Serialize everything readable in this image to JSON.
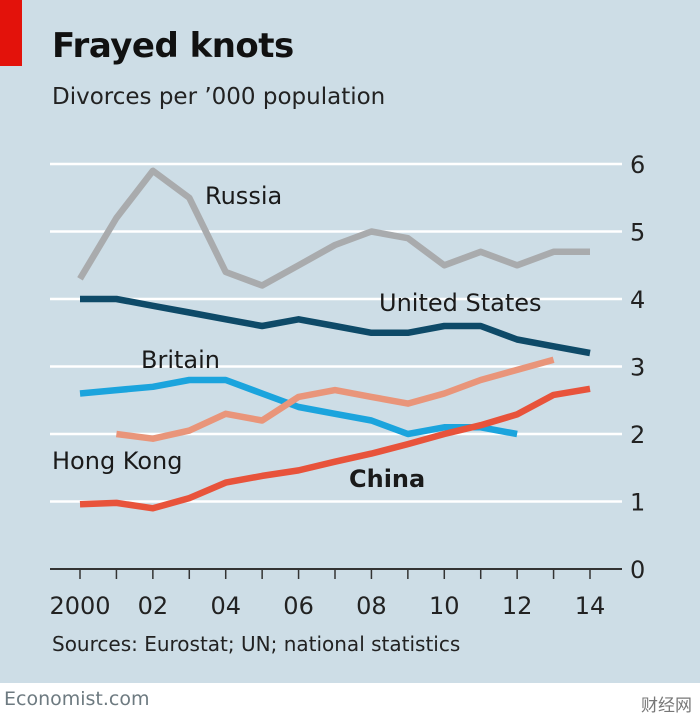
{
  "header": {
    "title": "Frayed knots",
    "subtitle": "Divorces per ’000 population"
  },
  "sources": "Sources: Eurostat; UN; national statistics",
  "footer": {
    "brand": "Economist.com",
    "watermark": "财经网"
  },
  "chart_data": {
    "type": "line",
    "title": "Frayed knots",
    "subtitle": "Divorces per ’000 population",
    "ylabel": "Divorces per ’000 population",
    "xlabel": "",
    "xlim": [
      2000,
      2014
    ],
    "ylim": [
      0,
      6
    ],
    "x_ticks": [
      2000,
      2002,
      2004,
      2006,
      2008,
      2010,
      2012,
      2014
    ],
    "x_tick_labels": [
      "2000",
      "02",
      "04",
      "06",
      "08",
      "10",
      "12",
      "14"
    ],
    "y_ticks": [
      0,
      1,
      2,
      3,
      4,
      5,
      6
    ],
    "y_tick_labels": [
      "0",
      "1",
      "2",
      "3",
      "4",
      "5",
      "6"
    ],
    "grid": true,
    "legend": "direct labels",
    "series": [
      {
        "name": "Russia",
        "label": "Russia",
        "color": "#a9abad",
        "bold": false,
        "x": [
          2000,
          2001,
          2002,
          2003,
          2004,
          2005,
          2006,
          2007,
          2008,
          2009,
          2010,
          2011,
          2012,
          2013,
          2014
        ],
        "values": [
          4.3,
          5.2,
          5.9,
          5.5,
          4.4,
          4.2,
          4.5,
          4.8,
          5.0,
          4.9,
          4.5,
          4.7,
          4.5,
          4.7,
          4.7
        ]
      },
      {
        "name": "United States",
        "label": "United States",
        "color": "#0e4a68",
        "bold": false,
        "x": [
          2000,
          2001,
          2002,
          2003,
          2004,
          2005,
          2006,
          2007,
          2008,
          2009,
          2010,
          2011,
          2012,
          2013,
          2014
        ],
        "values": [
          4.0,
          4.0,
          3.9,
          3.8,
          3.7,
          3.6,
          3.7,
          3.6,
          3.5,
          3.5,
          3.6,
          3.6,
          3.4,
          3.3,
          3.2
        ]
      },
      {
        "name": "Britain",
        "label": "Britain",
        "color": "#1ba4dd",
        "bold": false,
        "x": [
          2000,
          2001,
          2002,
          2003,
          2004,
          2005,
          2006,
          2007,
          2008,
          2009,
          2010,
          2011,
          2012
        ],
        "values": [
          2.6,
          2.65,
          2.7,
          2.8,
          2.8,
          2.6,
          2.4,
          2.3,
          2.2,
          2.0,
          2.1,
          2.1,
          2.0
        ]
      },
      {
        "name": "Hong Kong",
        "label": "Hong Kong",
        "color": "#e9957a",
        "bold": false,
        "x": [
          2001,
          2002,
          2003,
          2004,
          2005,
          2006,
          2007,
          2008,
          2009,
          2010,
          2011,
          2012,
          2013
        ],
        "values": [
          2.0,
          1.93,
          2.05,
          2.3,
          2.2,
          2.55,
          2.65,
          2.55,
          2.45,
          2.6,
          2.8,
          2.95,
          3.1
        ]
      },
      {
        "name": "China",
        "label": "China",
        "color": "#e8533b",
        "bold": true,
        "x": [
          2000,
          2001,
          2002,
          2003,
          2004,
          2005,
          2006,
          2007,
          2008,
          2009,
          2010,
          2011,
          2012,
          2013,
          2014
        ],
        "values": [
          0.96,
          0.98,
          0.9,
          1.05,
          1.28,
          1.38,
          1.46,
          1.59,
          1.71,
          1.85,
          2.0,
          2.13,
          2.29,
          2.58,
          2.67
        ]
      }
    ]
  }
}
